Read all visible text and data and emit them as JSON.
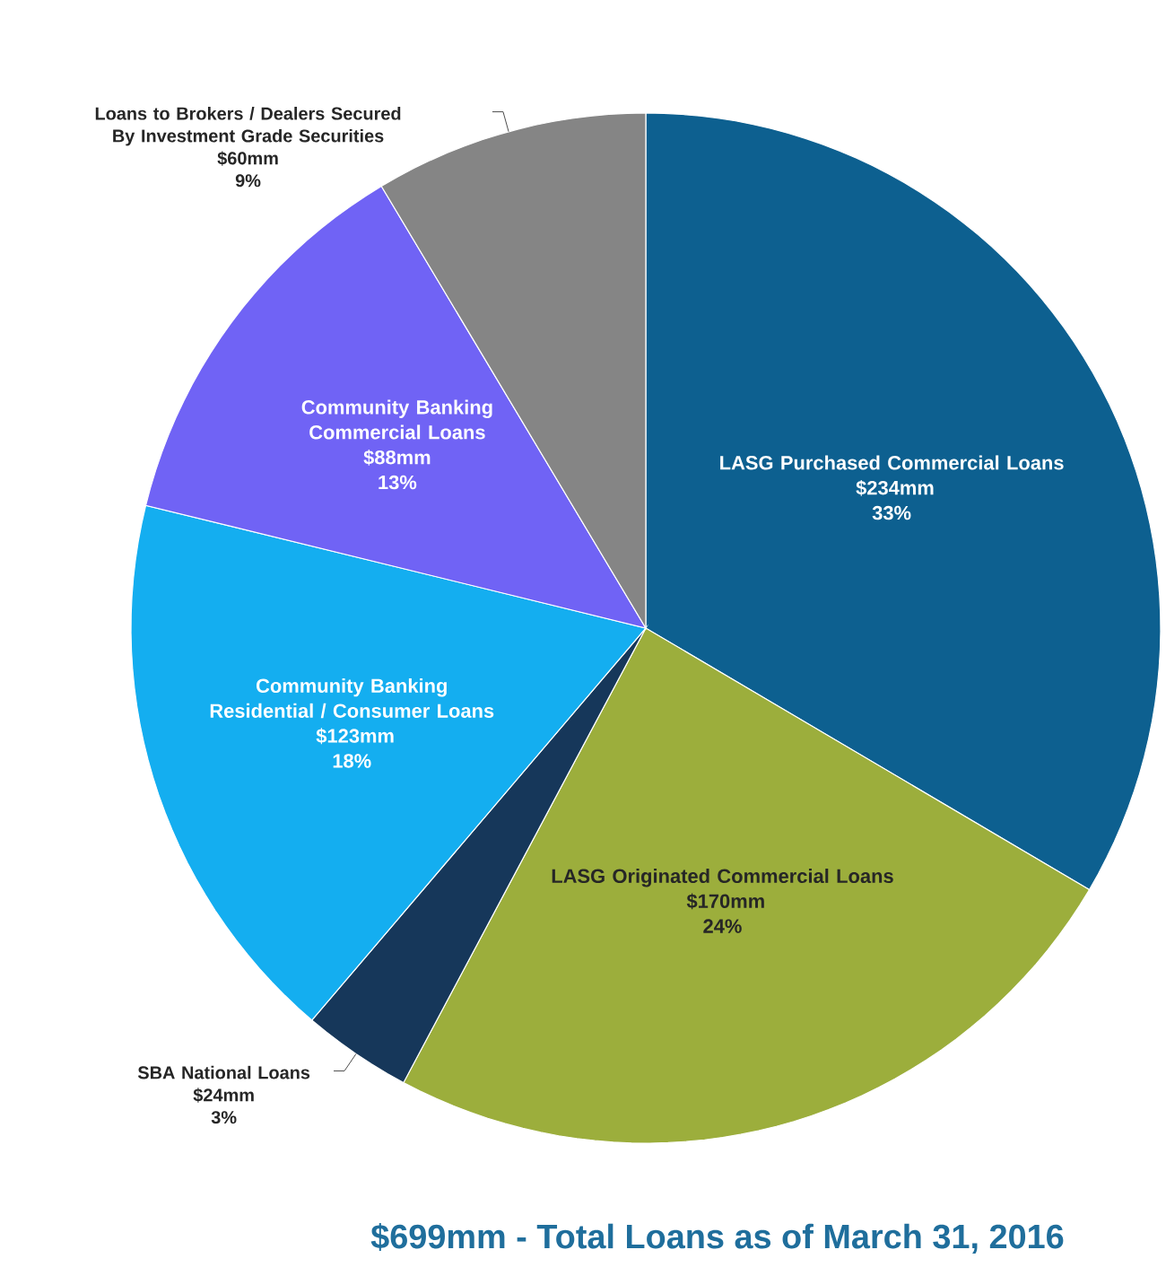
{
  "chart_data": {
    "type": "pie",
    "title": "$699mm - Total Loans as of March 31, 2016",
    "categories": [
      "LASG Purchased Commercial Loans",
      "LASG Originated Commercial Loans",
      "SBA National Loans",
      "Community Banking Residential / Consumer Loans",
      "Community Banking Commercial Loans",
      "Loans to Brokers / Dealers Secured By Investment Grade Securities"
    ],
    "values": [
      234,
      170,
      24,
      123,
      88,
      60
    ],
    "value_labels": [
      "$234mm 33%",
      "$170mm 24%",
      "$24mm 3%",
      "$123mm 18%",
      "$88mm 13%",
      "$60mm 9%"
    ],
    "colors": [
      "#0d6090",
      "#9cae3c",
      "#16375a",
      "#14aef0",
      "#7063f5",
      "#858585"
    ]
  }
}
